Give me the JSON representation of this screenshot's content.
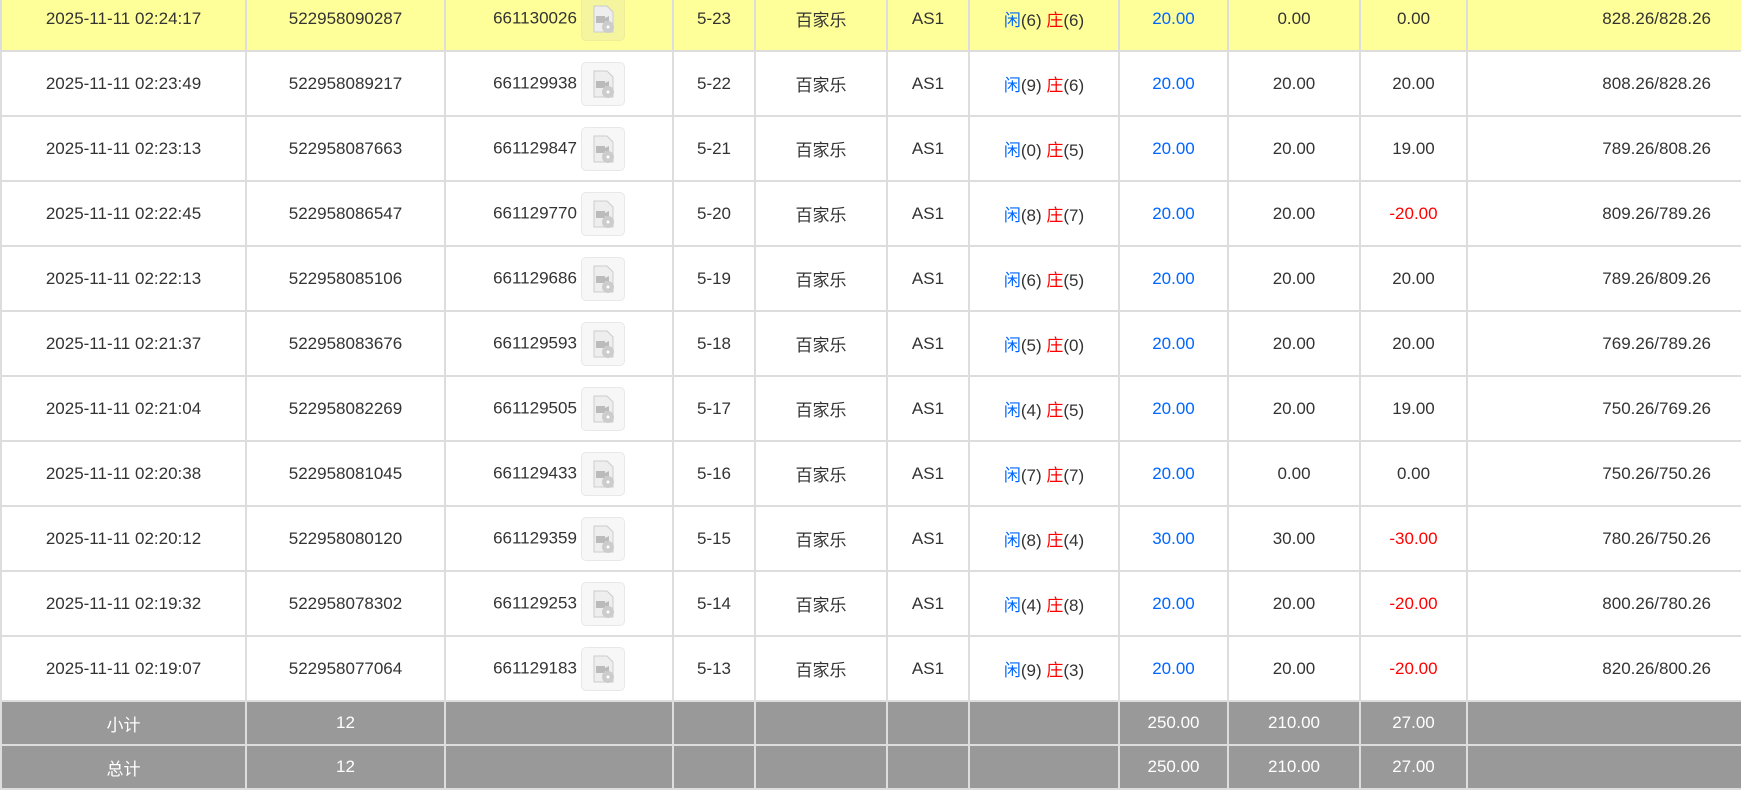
{
  "rows": [
    {
      "time": "2025-11-11 02:24:17",
      "bet_id": "522958090287",
      "round": "661130026",
      "shoe": "5-23",
      "game": "百家乐",
      "table": "AS1",
      "player_label": "闲",
      "player": "(6)",
      "banker_label": "庄",
      "banker": "(6)",
      "bet": "20.00",
      "valid": "0.00",
      "win": "0.00",
      "balance": "828.26/828.26",
      "highlight": true
    },
    {
      "time": "2025-11-11 02:23:49",
      "bet_id": "522958089217",
      "round": "661129938",
      "shoe": "5-22",
      "game": "百家乐",
      "table": "AS1",
      "player_label": "闲",
      "player": "(9)",
      "banker_label": "庄",
      "banker": "(6)",
      "bet": "20.00",
      "valid": "20.00",
      "win": "20.00",
      "balance": "808.26/828.26"
    },
    {
      "time": "2025-11-11 02:23:13",
      "bet_id": "522958087663",
      "round": "661129847",
      "shoe": "5-21",
      "game": "百家乐",
      "table": "AS1",
      "player_label": "闲",
      "player": "(0)",
      "banker_label": "庄",
      "banker": "(5)",
      "bet": "20.00",
      "valid": "20.00",
      "win": "19.00",
      "balance": "789.26/808.26"
    },
    {
      "time": "2025-11-11 02:22:45",
      "bet_id": "522958086547",
      "round": "661129770",
      "shoe": "5-20",
      "game": "百家乐",
      "table": "AS1",
      "player_label": "闲",
      "player": "(8)",
      "banker_label": "庄",
      "banker": "(7)",
      "bet": "20.00",
      "valid": "20.00",
      "win": "-20.00",
      "balance": "809.26/789.26"
    },
    {
      "time": "2025-11-11 02:22:13",
      "bet_id": "522958085106",
      "round": "661129686",
      "shoe": "5-19",
      "game": "百家乐",
      "table": "AS1",
      "player_label": "闲",
      "player": "(6)",
      "banker_label": "庄",
      "banker": "(5)",
      "bet": "20.00",
      "valid": "20.00",
      "win": "20.00",
      "balance": "789.26/809.26"
    },
    {
      "time": "2025-11-11 02:21:37",
      "bet_id": "522958083676",
      "round": "661129593",
      "shoe": "5-18",
      "game": "百家乐",
      "table": "AS1",
      "player_label": "闲",
      "player": "(5)",
      "banker_label": "庄",
      "banker": "(0)",
      "bet": "20.00",
      "valid": "20.00",
      "win": "20.00",
      "balance": "769.26/789.26"
    },
    {
      "time": "2025-11-11 02:21:04",
      "bet_id": "522958082269",
      "round": "661129505",
      "shoe": "5-17",
      "game": "百家乐",
      "table": "AS1",
      "player_label": "闲",
      "player": "(4)",
      "banker_label": "庄",
      "banker": "(5)",
      "bet": "20.00",
      "valid": "20.00",
      "win": "19.00",
      "balance": "750.26/769.26"
    },
    {
      "time": "2025-11-11 02:20:38",
      "bet_id": "522958081045",
      "round": "661129433",
      "shoe": "5-16",
      "game": "百家乐",
      "table": "AS1",
      "player_label": "闲",
      "player": "(7)",
      "banker_label": "庄",
      "banker": "(7)",
      "bet": "20.00",
      "valid": "0.00",
      "win": "0.00",
      "balance": "750.26/750.26"
    },
    {
      "time": "2025-11-11 02:20:12",
      "bet_id": "522958080120",
      "round": "661129359",
      "shoe": "5-15",
      "game": "百家乐",
      "table": "AS1",
      "player_label": "闲",
      "player": "(8)",
      "banker_label": "庄",
      "banker": "(4)",
      "bet": "30.00",
      "valid": "30.00",
      "win": "-30.00",
      "balance": "780.26/750.26"
    },
    {
      "time": "2025-11-11 02:19:32",
      "bet_id": "522958078302",
      "round": "661129253",
      "shoe": "5-14",
      "game": "百家乐",
      "table": "AS1",
      "player_label": "闲",
      "player": "(4)",
      "banker_label": "庄",
      "banker": "(8)",
      "bet": "20.00",
      "valid": "20.00",
      "win": "-20.00",
      "balance": "800.26/780.26"
    },
    {
      "time": "2025-11-11 02:19:07",
      "bet_id": "522958077064",
      "round": "661129183",
      "shoe": "5-13",
      "game": "百家乐",
      "table": "AS1",
      "player_label": "闲",
      "player": "(9)",
      "banker_label": "庄",
      "banker": "(3)",
      "bet": "20.00",
      "valid": "20.00",
      "win": "-20.00",
      "balance": "820.26/800.26"
    }
  ],
  "summary": [
    {
      "label": "小计",
      "count": "12",
      "bet": "250.00",
      "valid": "210.00",
      "win": "27.00"
    },
    {
      "label": "总计",
      "count": "12",
      "bet": "250.00",
      "valid": "210.00",
      "win": "27.00"
    }
  ],
  "icon": "video-replay-icon"
}
